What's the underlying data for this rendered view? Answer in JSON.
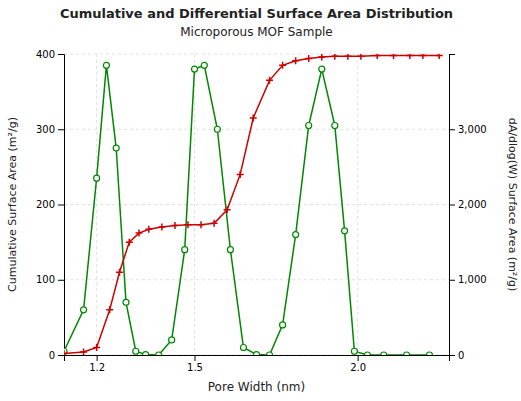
{
  "chart_data": {
    "type": "line",
    "title": "Cumulative and Differential Surface Area Distribution",
    "subtitle": "Microporous MOF Sample",
    "x_label": "Pore Width (nm)",
    "y_label": "Cumulative Surface Area (m²/g)",
    "y2_label": "dA/dlog(W) Surface Area (m²/g)",
    "xlim": [
      1.1,
      2.28
    ],
    "xticks": [
      1.2,
      1.5,
      {
        "value": 2,
        "label": "2.0"
      }
    ],
    "ylim": [
      0,
      400
    ],
    "yticks": [
      0,
      100,
      200,
      300,
      400
    ],
    "y2lim": [
      0,
      4000
    ],
    "y2ticks": [
      0,
      {
        "value": 1000,
        "label": "1,000"
      },
      {
        "value": 2000,
        "label": "2,000"
      },
      {
        "value": 3000,
        "label": "3,000"
      },
      {
        "value": 4000,
        "label": null
      }
    ],
    "grid": true,
    "series": [
      {
        "axis": "y2",
        "color": "#008800",
        "marker": "circle",
        "line_style": "solid",
        "x": [
          1.1,
          1.16,
          1.2,
          1.23,
          1.26,
          1.29,
          1.32,
          1.35,
          1.39,
          1.43,
          1.47,
          1.5,
          1.53,
          1.57,
          1.61,
          1.65,
          1.69,
          1.73,
          1.77,
          1.81,
          1.85,
          1.89,
          1.93,
          1.96,
          1.99,
          2.03,
          2.08,
          2.15,
          2.22
        ],
        "values": [
          50,
          600,
          2350,
          3850,
          2750,
          700,
          50,
          5,
          0,
          200,
          1400,
          3800,
          3850,
          3000,
          1400,
          100,
          5,
          0,
          400,
          1600,
          3050,
          3800,
          3050,
          1650,
          50,
          0,
          0,
          0,
          0
        ]
      },
      {
        "axis": "y",
        "color": "#cc0000",
        "marker": "plus",
        "line_style": "solid",
        "x": [
          1.1,
          1.16,
          1.2,
          1.24,
          1.27,
          1.3,
          1.33,
          1.36,
          1.4,
          1.44,
          1.48,
          1.52,
          1.56,
          1.6,
          1.64,
          1.68,
          1.73,
          1.77,
          1.81,
          1.85,
          1.89,
          1.93,
          1.97,
          2.01,
          2.06,
          2.11,
          2.16,
          2.2,
          2.25
        ],
        "values": [
          2,
          4,
          10,
          60,
          110,
          150,
          162,
          167,
          170,
          172,
          173,
          173,
          175,
          193,
          240,
          315,
          365,
          385,
          391,
          394,
          396,
          397,
          397,
          397,
          398,
          398,
          398,
          398,
          398
        ]
      }
    ]
  }
}
